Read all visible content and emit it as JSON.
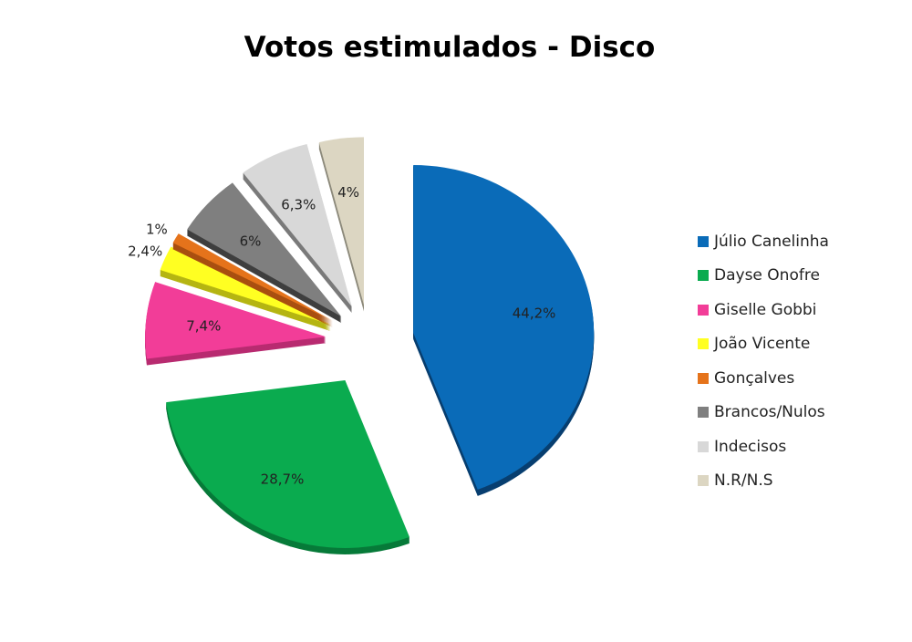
{
  "chart_data": {
    "type": "pie",
    "title": "Votos estimulados - Disco",
    "categories": [
      "Júlio Canelinha",
      "Dayse Onofre",
      "Giselle Gobbi",
      "João Vicente",
      "Gonçalves",
      "Brancos/Nulos",
      "Indecisos",
      "N.R/N.S"
    ],
    "values": [
      44.2,
      28.7,
      7.4,
      2.4,
      1,
      6,
      6.3,
      4
    ],
    "labels": [
      "44,2%",
      "28,7%",
      "7,4%",
      "2,4%",
      "1%",
      "6%",
      "6,3%",
      "4%"
    ],
    "colors": [
      "#0a6bb8",
      "#0aab4f",
      "#f23d98",
      "#ffff22",
      "#e5731b",
      "#7f7f7f",
      "#d8d8d8",
      "#dcd6c2"
    ],
    "side_colors": [
      "#083f70",
      "#077a39",
      "#b82b70",
      "#b5b512",
      "#a94f10",
      "#3f3f3f",
      "#7a7a7a",
      "#8d8a7c"
    ],
    "legend_position": "right"
  }
}
